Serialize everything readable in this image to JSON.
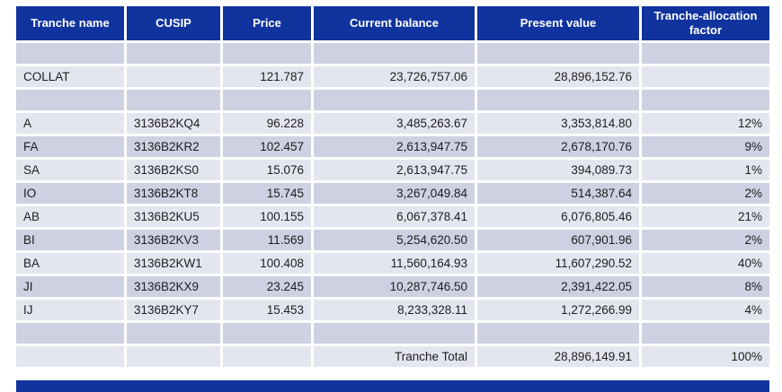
{
  "colors": {
    "header_background": "#10339E",
    "header_text": "#FFFFFF",
    "row_dark": "#CDD1E2",
    "row_light": "#E4E6EF",
    "body_text": "#1E1E1E",
    "page_background": "#FFFFFF",
    "footer_bar": "#10339E"
  },
  "table": {
    "columns": [
      {
        "key": "tranche_name",
        "label": "Tranche name",
        "align": "left"
      },
      {
        "key": "cusip",
        "label": "CUSIP",
        "align": "left"
      },
      {
        "key": "price",
        "label": "Price",
        "align": "right"
      },
      {
        "key": "current_balance",
        "label": "Current balance",
        "align": "right"
      },
      {
        "key": "present_value",
        "label": "Present value",
        "align": "right"
      },
      {
        "key": "allocation_factor",
        "label": "Tranche-allocation factor",
        "align": "right"
      }
    ],
    "rows": [
      {
        "cells": [
          "",
          "",
          "",
          "",
          "",
          ""
        ]
      },
      {
        "cells": [
          "COLLAT",
          "",
          "121.787",
          "23,726,757.06",
          "28,896,152.76",
          ""
        ]
      },
      {
        "cells": [
          "",
          "",
          "",
          "",
          "",
          ""
        ]
      },
      {
        "cells": [
          "A",
          "3136B2KQ4",
          "96.228",
          "3,485,263.67",
          "3,353,814.80",
          "12%"
        ]
      },
      {
        "cells": [
          "FA",
          "3136B2KR2",
          "102.457",
          "2,613,947.75",
          "2,678,170.76",
          "9%"
        ]
      },
      {
        "cells": [
          "SA",
          "3136B2KS0",
          "15.076",
          "2,613,947.75",
          "394,089.73",
          "1%"
        ]
      },
      {
        "cells": [
          "IO",
          "3136B2KT8",
          "15.745",
          "3,267,049.84",
          "514,387.64",
          "2%"
        ]
      },
      {
        "cells": [
          "AB",
          "3136B2KU5",
          "100.155",
          "6,067,378.41",
          "6,076,805.46",
          "21%"
        ]
      },
      {
        "cells": [
          "BI",
          "3136B2KV3",
          "11.569",
          "5,254,620.50",
          "607,901.96",
          "2%"
        ]
      },
      {
        "cells": [
          "BA",
          "3136B2KW1",
          "100.408",
          "11,560,164.93",
          "11,607,290.52",
          "40%"
        ]
      },
      {
        "cells": [
          "JI",
          "3136B2KX9",
          "23.245",
          "10,287,746.50",
          "2,391,422.05",
          "8%"
        ]
      },
      {
        "cells": [
          "IJ",
          "3136B2KY7",
          "15.453",
          "8,233,328.11",
          "1,272,266.99",
          "4%"
        ]
      },
      {
        "cells": [
          "",
          "",
          "",
          "",
          "",
          ""
        ]
      },
      {
        "cells": [
          "",
          "",
          "",
          "Tranche Total",
          "28,896,149.91",
          "100%"
        ]
      }
    ]
  }
}
